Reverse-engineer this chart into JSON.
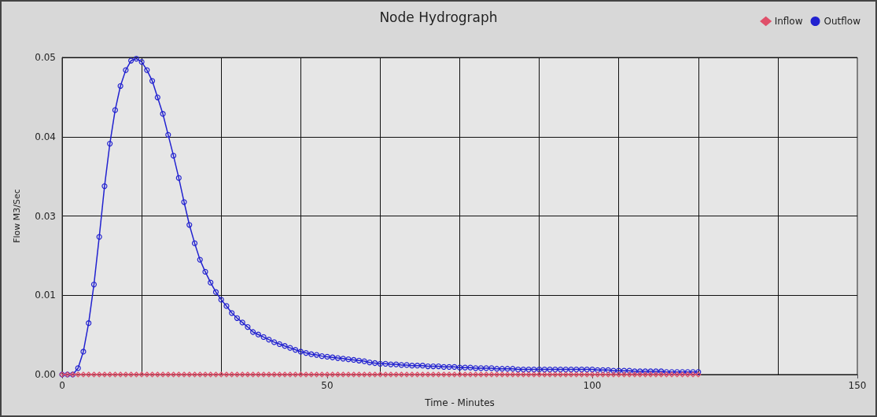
{
  "chart_data": {
    "type": "line",
    "title": "Node Hydrograph",
    "xlabel": "Time - Minutes",
    "ylabel": "Flow M3/Sec",
    "x": [
      0,
      1,
      2,
      3,
      4,
      5,
      6,
      7,
      8,
      9,
      10,
      11,
      12,
      13,
      14,
      15,
      16,
      17,
      18,
      19,
      20,
      21,
      22,
      23,
      24,
      25,
      26,
      27,
      28,
      29,
      30,
      31,
      32,
      33,
      34,
      35,
      36,
      37,
      38,
      39,
      40,
      41,
      42,
      43,
      44,
      45,
      46,
      47,
      48,
      49,
      50,
      51,
      52,
      53,
      54,
      55,
      56,
      57,
      58,
      59,
      60,
      61,
      62,
      63,
      64,
      65,
      66,
      67,
      68,
      69,
      70,
      71,
      72,
      73,
      74,
      75,
      76,
      77,
      78,
      79,
      80,
      81,
      82,
      83,
      84,
      85,
      86,
      87,
      88,
      89,
      90,
      91,
      92,
      93,
      94,
      95,
      96,
      97,
      98,
      99,
      100,
      101,
      102,
      103,
      104,
      105,
      106,
      107,
      108,
      109,
      110,
      111,
      112,
      113,
      114,
      115,
      116,
      117,
      118,
      119,
      120
    ],
    "series": [
      {
        "name": "Inflow",
        "color": "#e0506a",
        "marker": "diamond",
        "values": [
          0,
          0,
          0,
          0,
          0,
          0,
          0,
          0,
          0,
          0,
          0,
          0,
          0,
          0,
          0,
          0,
          0,
          0,
          0,
          0,
          0,
          0,
          0,
          0,
          0,
          0,
          0,
          0,
          0,
          0,
          0,
          0,
          0,
          0,
          0,
          0,
          0,
          0,
          0,
          0,
          0,
          0,
          0,
          0,
          0,
          0,
          0,
          0,
          0,
          0,
          0,
          0,
          0,
          0,
          0,
          0,
          0,
          0,
          0,
          0,
          0,
          0,
          0,
          0,
          0,
          0,
          0,
          0,
          0,
          0,
          0,
          0,
          0,
          0,
          0,
          0,
          0,
          0,
          0,
          0,
          0,
          0,
          0,
          0,
          0,
          0,
          0,
          0,
          0,
          0,
          0,
          0,
          0,
          0,
          0,
          0,
          0,
          0,
          0,
          0,
          0,
          0,
          0,
          0,
          0,
          0,
          0,
          0,
          0,
          0,
          0,
          0,
          0,
          0,
          0,
          0,
          0,
          0,
          0,
          0,
          0
        ]
      },
      {
        "name": "Outflow",
        "color": "#2222d0",
        "marker": "circle",
        "values": [
          0,
          0,
          0,
          0.001,
          0.0036,
          0.0081,
          0.0142,
          0.0217,
          0.0297,
          0.0364,
          0.0417,
          0.0455,
          0.048,
          0.0495,
          0.0498,
          0.0493,
          0.048,
          0.0463,
          0.0437,
          0.0411,
          0.0378,
          0.0345,
          0.031,
          0.0272,
          0.0236,
          0.0207,
          0.0181,
          0.0162,
          0.0145,
          0.013,
          0.0118,
          0.0108,
          0.0097,
          0.0089,
          0.0082,
          0.0075,
          0.0067,
          0.0063,
          0.0059,
          0.0055,
          0.0051,
          0.0048,
          0.0045,
          0.0042,
          0.0039,
          0.0036,
          0.0034,
          0.0032,
          0.0031,
          0.0029,
          0.0028,
          0.0027,
          0.0026,
          0.0025,
          0.0024,
          0.0023,
          0.0022,
          0.0021,
          0.0019,
          0.0018,
          0.0017,
          0.0017,
          0.0016,
          0.0016,
          0.0015,
          0.0015,
          0.0014,
          0.0014,
          0.0014,
          0.0013,
          0.0013,
          0.0013,
          0.0012,
          0.0012,
          0.0012,
          0.0011,
          0.0011,
          0.0011,
          0.001,
          0.001,
          0.001,
          0.001,
          0.0009,
          0.0009,
          0.0009,
          0.0009,
          0.0008,
          0.0008,
          0.0008,
          0.0008,
          0.0008,
          0.0008,
          0.0008,
          0.0008,
          0.0008,
          0.0008,
          0.0008,
          0.0008,
          0.0008,
          0.0008,
          0.0008,
          0.0007,
          0.0007,
          0.0007,
          0.0006,
          0.0006,
          0.0006,
          0.0006,
          0.0005,
          0.0005,
          0.0005,
          0.0005,
          0.0005,
          0.0005,
          0.0004,
          0.0004,
          0.0004,
          0.0004,
          0.0004,
          0.0004,
          0.0004
        ]
      }
    ],
    "xlim": [
      0,
      150
    ],
    "xticks": [
      0,
      {
        "value": 15,
        "label": null
      },
      {
        "value": 30,
        "label": null
      },
      {
        "value": 45,
        "label": null
      },
      50,
      {
        "value": 60,
        "label": null
      },
      {
        "value": 75,
        "label": null
      },
      {
        "value": 90,
        "label": null
      },
      100,
      {
        "value": 105,
        "label": null
      },
      {
        "value": 120,
        "label": null
      },
      {
        "value": 135,
        "label": null
      },
      150
    ],
    "ylim": [
      0,
      0.05
    ],
    "yticks": [
      {
        "value": 0,
        "label": "0.00"
      },
      {
        "value": 0.0125,
        "label": "0.01"
      },
      {
        "value": 0.025,
        "label": "0.03"
      },
      {
        "value": 0.0375,
        "label": "0.04"
      },
      {
        "value": 0.05,
        "label": "0.05"
      }
    ],
    "grid": true,
    "legend": "top right",
    "line_style": "solid"
  }
}
